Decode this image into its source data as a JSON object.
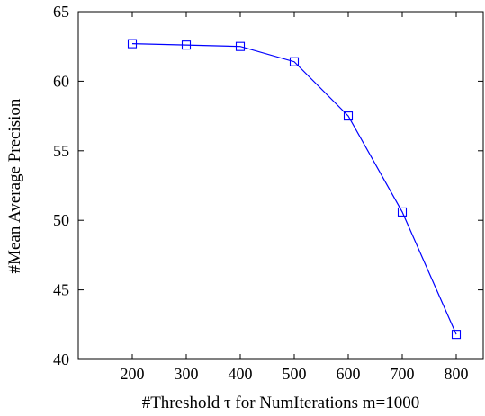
{
  "chart_data": {
    "type": "line",
    "title": "",
    "xlabel": "#Threshold τ for NumIterations m=1000",
    "ylabel": "#Mean Average Precision",
    "x": [
      200,
      300,
      400,
      500,
      600,
      700,
      800
    ],
    "xticks": [
      200,
      300,
      400,
      500,
      600,
      700,
      800
    ],
    "yticks": [
      40,
      45,
      50,
      55,
      60,
      65
    ],
    "xlim": [
      100,
      850
    ],
    "ylim": [
      40,
      65
    ],
    "grid": false,
    "legend": "none",
    "series": [
      {
        "values": [
          62.7,
          62.6,
          62.5,
          61.4,
          57.5,
          50.6,
          41.8
        ],
        "color": "#0000ff",
        "marker": "square-outline"
      }
    ]
  }
}
